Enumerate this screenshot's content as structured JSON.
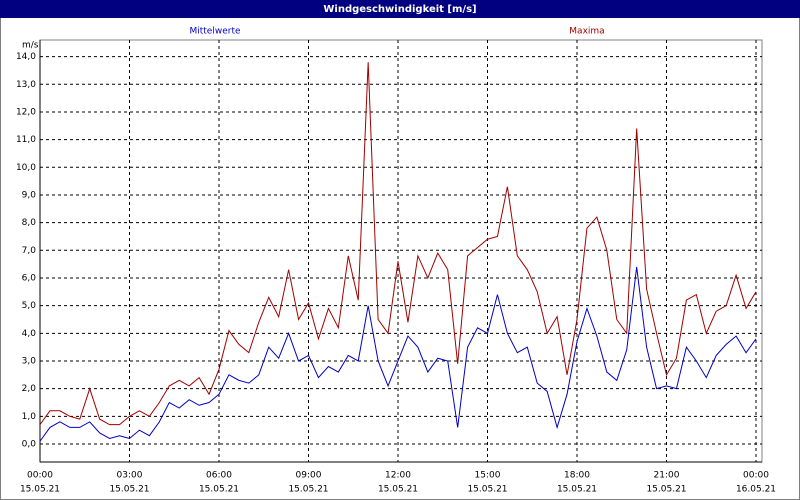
{
  "chart_data": {
    "type": "line",
    "title": "Windgeschwindigkeit [m/s]",
    "y_label": "m/s",
    "x": [
      0,
      20,
      40,
      60,
      80,
      100,
      120,
      140,
      160,
      180,
      200,
      220,
      240,
      260,
      280,
      300,
      320,
      340,
      360,
      380,
      400,
      420,
      440,
      460,
      480,
      500,
      520,
      540,
      560,
      580,
      600,
      620,
      640,
      660,
      680,
      700,
      720,
      740,
      760,
      780,
      800,
      820,
      840,
      860,
      880,
      900,
      920,
      940,
      960,
      980,
      1000,
      1020,
      1040,
      1060,
      1080,
      1100,
      1120,
      1140,
      1160,
      1180,
      1200,
      1220,
      1240,
      1260,
      1280,
      1300,
      1320,
      1340,
      1360,
      1380,
      1400,
      1420,
      1440
    ],
    "series": [
      {
        "name": "Mittelwerte",
        "color": "#0000c8",
        "values": [
          0.1,
          0.6,
          0.8,
          0.6,
          0.6,
          0.8,
          0.4,
          0.2,
          0.3,
          0.2,
          0.5,
          0.3,
          0.8,
          1.5,
          1.3,
          1.6,
          1.4,
          1.5,
          1.8,
          2.5,
          2.3,
          2.2,
          2.5,
          3.5,
          3.1,
          4.0,
          3.0,
          3.2,
          2.4,
          2.8,
          2.6,
          3.2,
          3.0,
          5.0,
          3.0,
          2.1,
          3.0,
          3.9,
          3.5,
          2.6,
          3.1,
          3.0,
          0.6,
          3.5,
          4.2,
          4.0,
          5.4,
          4.0,
          3.3,
          3.5,
          2.2,
          1.9,
          0.6,
          1.8,
          3.7,
          4.9,
          3.9,
          2.6,
          2.3,
          3.4,
          6.4,
          3.5,
          2.0,
          2.1,
          2.0,
          3.5,
          3.0,
          2.4,
          3.2,
          3.6,
          3.9,
          3.3,
          3.8
        ]
      },
      {
        "name": "Maxima",
        "color": "#a00000",
        "values": [
          0.7,
          1.2,
          1.2,
          1.0,
          0.9,
          2.0,
          0.9,
          0.7,
          0.7,
          1.0,
          1.2,
          1.0,
          1.5,
          2.1,
          2.3,
          2.1,
          2.4,
          1.8,
          2.7,
          4.1,
          3.6,
          3.3,
          4.4,
          5.3,
          4.6,
          6.3,
          4.5,
          5.1,
          3.8,
          4.9,
          4.2,
          6.8,
          5.2,
          13.8,
          4.5,
          4.0,
          6.6,
          4.4,
          6.8,
          6.0,
          6.9,
          6.3,
          2.9,
          6.8,
          7.1,
          7.4,
          7.5,
          9.3,
          6.8,
          6.3,
          5.5,
          4.0,
          4.6,
          2.5,
          4.5,
          7.8,
          8.2,
          7.0,
          4.5,
          4.0,
          11.4,
          5.6,
          4.0,
          2.5,
          3.1,
          5.2,
          5.4,
          4.0,
          4.8,
          5.0,
          6.1,
          4.9,
          5.5
        ]
      }
    ],
    "xlim": [
      0,
      1440
    ],
    "xticks": [
      {
        "value": 0,
        "label": "00:00"
      },
      {
        "value": 180,
        "label": "03:00"
      },
      {
        "value": 360,
        "label": "06:00"
      },
      {
        "value": 540,
        "label": "09:00"
      },
      {
        "value": 720,
        "label": "12:00"
      },
      {
        "value": 900,
        "label": "15:00"
      },
      {
        "value": 1080,
        "label": "18:00"
      },
      {
        "value": 1260,
        "label": "21:00"
      },
      {
        "value": 1440,
        "label": "00:00"
      }
    ],
    "xtick_dates": [
      "15.05.21",
      "15.05.21",
      "15.05.21",
      "15.05.21",
      "15.05.21",
      "15.05.21",
      "15.05.21",
      "15.05.21",
      "16.05.21"
    ],
    "ylim": [
      -0.65,
      14.6
    ],
    "yticks": [
      {
        "value": 0,
        "label": "0,0"
      },
      {
        "value": 1,
        "label": "1,0"
      },
      {
        "value": 2,
        "label": "2,0"
      },
      {
        "value": 3,
        "label": "3,0"
      },
      {
        "value": 4,
        "label": "4,0"
      },
      {
        "value": 5,
        "label": "5,0"
      },
      {
        "value": 6,
        "label": "6,0"
      },
      {
        "value": 7,
        "label": "7,0"
      },
      {
        "value": 8,
        "label": "8,0"
      },
      {
        "value": 9,
        "label": "9,0"
      },
      {
        "value": 10,
        "label": "10,0"
      },
      {
        "value": 11,
        "label": "11,0"
      },
      {
        "value": 12,
        "label": "12,0"
      },
      {
        "value": 13,
        "label": "13,0"
      },
      {
        "value": 14,
        "label": "14,0"
      }
    ],
    "grid": true
  }
}
